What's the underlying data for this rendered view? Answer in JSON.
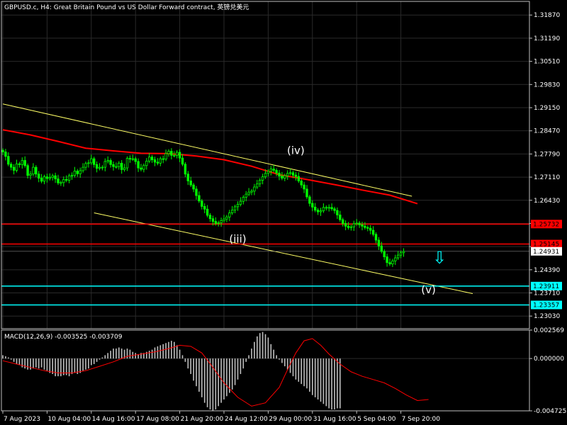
{
  "header": {
    "title": "GBPUSD.c, H4:  Great Britain Pound vs US Dollar Forward contract, 英镑兑美元"
  },
  "macd": {
    "label": "MACD(12,26,9) -0.003525 -0.003709"
  },
  "colors": {
    "background": "#000000",
    "grid": "#2a2a2a",
    "bull_candle": "#00ff00",
    "bear_candle": "#00ff00",
    "moving_average": "#ff0000",
    "channel": "#ffff66",
    "resistance": "#ff0000",
    "support": "#00ffff",
    "macd_histogram": "#c0c0c0",
    "macd_signal": "#ff0000",
    "current_price_tag": "#ffffff"
  },
  "chart_data": {
    "type": "candlestick",
    "symbol": "GBPUSD.c",
    "timeframe": "H4",
    "price_axis": {
      "min": 1.2266,
      "max": 1.3227,
      "tick_labels": [
        "1.31870",
        "1.31190",
        "1.30510",
        "1.29830",
        "1.29150",
        "1.28470",
        "1.27790",
        "1.27110",
        "1.26430",
        "1.25750",
        "1.25070",
        "1.24390",
        "1.23710",
        "1.23030"
      ],
      "ticks": [
        1.3187,
        1.3119,
        1.3051,
        1.2983,
        1.2915,
        1.2847,
        1.2779,
        1.2711,
        1.2643,
        1.2575,
        1.2507,
        1.2439,
        1.2371,
        1.2303
      ]
    },
    "time_axis": {
      "labels": [
        "7 Aug 2023",
        "10 Aug 04:00",
        "14 Aug 16:00",
        "17 Aug 08:00",
        "21 Aug 20:00",
        "24 Aug 12:00",
        "29 Aug 00:00",
        "31 Aug 16:00",
        "5 Sep 04:00",
        "7 Sep 20:00"
      ],
      "label_bar_index": [
        0,
        16,
        32,
        48,
        64,
        80,
        96,
        112,
        128,
        144
      ]
    },
    "series": [
      {
        "name": "price",
        "close_path": [
          1.2785,
          1.2772,
          1.2749,
          1.274,
          1.2731,
          1.275,
          1.2748,
          1.276,
          1.2745,
          1.2716,
          1.272,
          1.274,
          1.272,
          1.2708,
          1.2699,
          1.2712,
          1.2707,
          1.271,
          1.2715,
          1.2706,
          1.2694,
          1.2695,
          1.2704,
          1.2702,
          1.2715,
          1.2716,
          1.2729,
          1.2721,
          1.273,
          1.274,
          1.2751,
          1.2753,
          1.2765,
          1.2748,
          1.2737,
          1.274,
          1.274,
          1.2757,
          1.276,
          1.2748,
          1.2742,
          1.2742,
          1.2752,
          1.2733,
          1.2738,
          1.2766,
          1.2765,
          1.2765,
          1.2757,
          1.2738,
          1.2734,
          1.2745,
          1.2758,
          1.277,
          1.2762,
          1.2755,
          1.2752,
          1.2765,
          1.2764,
          1.278,
          1.2787,
          1.2775,
          1.2775,
          1.2784,
          1.2767,
          1.2749,
          1.272,
          1.27,
          1.2688,
          1.2676,
          1.2657,
          1.2641,
          1.2625,
          1.2617,
          1.2599,
          1.2589,
          1.2581,
          1.2575,
          1.2577,
          1.2583,
          1.2588,
          1.2594,
          1.2606,
          1.2614,
          1.2624,
          1.2631,
          1.264,
          1.2652,
          1.2661,
          1.2667,
          1.267,
          1.2682,
          1.2691,
          1.2702,
          1.2712,
          1.2722,
          1.2728,
          1.2735,
          1.2731,
          1.2723,
          1.2714,
          1.2708,
          1.2715,
          1.2722,
          1.2724,
          1.2717,
          1.2713,
          1.27,
          1.2688,
          1.2676,
          1.2653,
          1.2634,
          1.2623,
          1.2614,
          1.2609,
          1.2612,
          1.2622,
          1.2622,
          1.2622,
          1.2618,
          1.2613,
          1.26,
          1.2586,
          1.2575,
          1.2567,
          1.2563,
          1.2565,
          1.2574,
          1.2576,
          1.2571,
          1.2567,
          1.2563,
          1.2561,
          1.2555,
          1.2543,
          1.2526,
          1.2509,
          1.2493,
          1.2477,
          1.246,
          1.2456,
          1.2465,
          1.2474,
          1.2482,
          1.2489,
          1.2493
        ]
      },
      {
        "name": "moving_average",
        "points": [
          [
            0,
            1.285
          ],
          [
            10,
            1.2835
          ],
          [
            20,
            1.2816
          ],
          [
            30,
            1.2796
          ],
          [
            40,
            1.2788
          ],
          [
            50,
            1.2781
          ],
          [
            60,
            1.278
          ],
          [
            70,
            1.2773
          ],
          [
            80,
            1.2762
          ],
          [
            90,
            1.2743
          ],
          [
            100,
            1.2718
          ],
          [
            110,
            1.2704
          ],
          [
            120,
            1.2689
          ],
          [
            130,
            1.2673
          ],
          [
            140,
            1.2658
          ],
          [
            150,
            1.2633
          ]
        ]
      },
      {
        "name": "channel_upper",
        "points": [
          [
            0,
            1.2926
          ],
          [
            148,
            1.2655
          ]
        ]
      },
      {
        "name": "channel_lower",
        "points": [
          [
            33,
            1.2606
          ],
          [
            170,
            1.2369
          ]
        ]
      }
    ],
    "levels": [
      {
        "kind": "resistance",
        "value": 1.25732,
        "label": "1.25732"
      },
      {
        "kind": "resistance",
        "value": 1.25145,
        "label": "1.25145"
      },
      {
        "kind": "current",
        "value": 1.24931,
        "label": "1.24931"
      },
      {
        "kind": "support",
        "value": 1.23911,
        "label": "1.23911"
      },
      {
        "kind": "support",
        "value": 1.23357,
        "label": "1.23357"
      }
    ],
    "annotations": [
      {
        "text": "(iv)",
        "bar": 106,
        "price": 1.2779
      },
      {
        "text": "(iii)",
        "bar": 85,
        "price": 1.2519
      },
      {
        "text": "(v)",
        "bar": 154,
        "price": 1.237
      },
      {
        "text": "⇩",
        "bar": 158,
        "price": 1.2457
      }
    ],
    "macd_axis": {
      "min": -0.004725,
      "max": 0.002569,
      "tick_labels": [
        "0.002569",
        "0.000000",
        "-0.004725"
      ],
      "ticks": [
        0.002569,
        0,
        -0.004725
      ]
    },
    "macd_histogram": [
      0.0003,
      0.0002,
      0.0001,
      -0.0001,
      -0.0003,
      -0.0005,
      -0.0006,
      -0.0008,
      -0.0009,
      -0.001,
      -0.001,
      -0.0009,
      -0.0008,
      -0.0009,
      -0.0008,
      -0.001,
      -0.0011,
      -0.0013,
      -0.0014,
      -0.0016,
      -0.0016,
      -0.0016,
      -0.0015,
      -0.0015,
      -0.0016,
      -0.0014,
      -0.0013,
      -0.0014,
      -0.0013,
      -0.0011,
      -0.001,
      -0.0009,
      -0.0006,
      -0.0005,
      -0.0003,
      -0.0001,
      0.0001,
      0.0003,
      0.0005,
      0.0007,
      0.0009,
      0.0009,
      0.001,
      0.0009,
      0.0008,
      0.0009,
      0.0008,
      0.0006,
      0.0005,
      0.0004,
      0.0005,
      0.0005,
      0.0006,
      0.0007,
      0.0008,
      0.001,
      0.0011,
      0.0012,
      0.0013,
      0.0014,
      0.0015,
      0.0016,
      0.0015,
      0.0012,
      0.0008,
      0.0003,
      -0.0003,
      -0.0009,
      -0.0014,
      -0.002,
      -0.0025,
      -0.003,
      -0.0035,
      -0.004,
      -0.0044,
      -0.0046,
      -0.0047,
      -0.0046,
      -0.0043,
      -0.004,
      -0.0037,
      -0.0034,
      -0.0031,
      -0.0028,
      -0.0024,
      -0.0019,
      -0.0014,
      -0.0009,
      -0.0003,
      0.0003,
      0.0009,
      0.0015,
      0.002,
      0.0023,
      0.0024,
      0.0022,
      0.0019,
      0.0013,
      0.0008,
      0.0003,
      -0.0001,
      -0.0004,
      -0.0007,
      -0.001,
      -0.0013,
      -0.0016,
      -0.0019,
      -0.0021,
      -0.0023,
      -0.0025,
      -0.0027,
      -0.003,
      -0.0033,
      -0.0035,
      -0.0037,
      -0.0039,
      -0.0041,
      -0.0043,
      -0.0045,
      -0.0046,
      -0.0046,
      -0.0045,
      -0.0045
    ],
    "macd_signal": [
      [
        0,
        -0.0002
      ],
      [
        5,
        -0.0005
      ],
      [
        10,
        -0.0008
      ],
      [
        15,
        -0.0011
      ],
      [
        20,
        -0.0013
      ],
      [
        25,
        -0.0013
      ],
      [
        30,
        -0.0011
      ],
      [
        35,
        -0.0007
      ],
      [
        40,
        -0.0003
      ],
      [
        45,
        0.0002
      ],
      [
        50,
        0.0004
      ],
      [
        55,
        0.0006
      ],
      [
        60,
        0.0009
      ],
      [
        64,
        0.0012
      ],
      [
        68,
        0.0011
      ],
      [
        72,
        0.0005
      ],
      [
        76,
        -0.0008
      ],
      [
        80,
        -0.0022
      ],
      [
        85,
        -0.0035
      ],
      [
        90,
        -0.0043
      ],
      [
        95,
        -0.004
      ],
      [
        100,
        -0.0026
      ],
      [
        103,
        -0.001
      ],
      [
        106,
        0.0005
      ],
      [
        109,
        0.0016
      ],
      [
        112,
        0.0018
      ],
      [
        115,
        0.0012
      ],
      [
        118,
        0.0004
      ],
      [
        122,
        -0.0005
      ],
      [
        126,
        -0.0012
      ],
      [
        130,
        -0.0016
      ],
      [
        134,
        -0.0019
      ],
      [
        138,
        -0.0022
      ],
      [
        142,
        -0.0027
      ],
      [
        146,
        -0.0033
      ],
      [
        150,
        -0.0038
      ],
      [
        154,
        -0.0037
      ]
    ]
  }
}
